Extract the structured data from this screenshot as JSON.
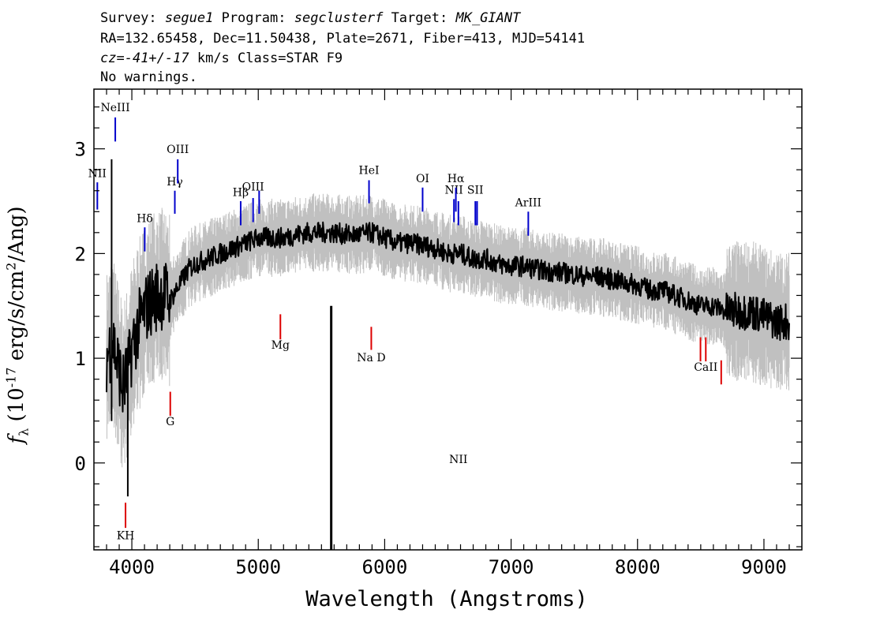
{
  "header": {
    "survey_label": "Survey:",
    "survey": "segue1",
    "program_label": "Program:",
    "program": "segclusterf",
    "target_label": "Target:",
    "target": "MK_GIANT",
    "line2": "RA=132.65458, Dec=11.50438, Plate=2671, Fiber=413, MJD=54141",
    "cz_label": "cz=",
    "cz_value": "-41+/-17",
    "cz_unit": " km/s Class=STAR F9",
    "line4": "No warnings."
  },
  "chart_data": {
    "type": "line",
    "xlabel": "Wavelength (Angstroms)",
    "ylabel_main": "f",
    "ylabel_sub": "λ",
    "ylabel_rest": " (10",
    "ylabel_exp": "-17",
    "ylabel_tail": " erg/s/cm",
    "ylabel_exp2": "2",
    "ylabel_end": "/Ang)",
    "xlim": [
      3700,
      9300
    ],
    "ylim": [
      -0.83,
      3.57
    ],
    "x_ticks": [
      4000,
      5000,
      6000,
      7000,
      8000,
      9000
    ],
    "x_tick_labels": [
      "4000",
      "5000",
      "6000",
      "7000",
      "8000",
      "9000"
    ],
    "y_ticks": [
      0,
      1,
      2,
      3
    ],
    "y_tick_labels": [
      "0",
      "1",
      "2",
      "3"
    ],
    "series": [
      {
        "color": "#000000",
        "x": [
          3800,
          3825,
          3850,
          3875,
          3900,
          3925,
          3950,
          3975,
          4000,
          4050,
          4100,
          4150,
          4200,
          4250,
          4300,
          4350,
          4400,
          4450,
          4500,
          4600,
          4700,
          4800,
          4900,
          5000,
          5100,
          5200,
          5300,
          5400,
          5500,
          5600,
          5700,
          5800,
          5900,
          6000,
          6100,
          6200,
          6300,
          6400,
          6500,
          6600,
          6700,
          6800,
          6900,
          7000,
          7100,
          7200,
          7300,
          7400,
          7500,
          7600,
          7700,
          7800,
          7900,
          8000,
          8100,
          8200,
          8300,
          8400,
          8500,
          8600,
          8700,
          8800,
          8900,
          9000,
          9100,
          9200
        ],
        "y": [
          1.0,
          1.1,
          1.2,
          1.0,
          0.9,
          0.7,
          0.8,
          0.9,
          1.1,
          1.3,
          1.45,
          1.55,
          1.6,
          1.62,
          1.55,
          1.65,
          1.75,
          1.85,
          1.9,
          1.95,
          2.0,
          2.05,
          2.1,
          2.15,
          2.15,
          2.15,
          2.18,
          2.2,
          2.2,
          2.2,
          2.18,
          2.18,
          2.2,
          2.15,
          2.1,
          2.1,
          2.08,
          2.05,
          2.0,
          2.0,
          1.95,
          1.95,
          1.9,
          1.88,
          1.88,
          1.85,
          1.83,
          1.82,
          1.8,
          1.78,
          1.78,
          1.75,
          1.72,
          1.7,
          1.65,
          1.65,
          1.6,
          1.55,
          1.5,
          1.5,
          1.45,
          1.45,
          1.45,
          1.4,
          1.35,
          1.35
        ]
      },
      {
        "color": "#c0c0c0",
        "x": [
          3800,
          3850,
          3900,
          3950,
          4000,
          4100,
          4200,
          4300,
          4400,
          4500,
          4700,
          4900,
          5100,
          5300,
          5500,
          5700,
          5900,
          6100,
          6300,
          6500,
          6700,
          6900,
          7100,
          7300,
          7500,
          7700,
          7900,
          8100,
          8300,
          8500,
          8700,
          8900,
          9100,
          9200
        ],
        "y": [
          0.6,
          0.7,
          0.5,
          0.3,
          0.9,
          1.2,
          1.4,
          1.35,
          1.5,
          1.65,
          1.8,
          1.9,
          1.95,
          1.97,
          2.0,
          2.0,
          1.98,
          1.95,
          1.9,
          1.82,
          1.78,
          1.75,
          1.72,
          1.68,
          1.65,
          1.62,
          1.6,
          1.55,
          1.45,
          1.35,
          1.3,
          1.2,
          1.15,
          1.1
        ]
      }
    ],
    "emission_lines": [
      {
        "label": "NII",
        "x": 3727,
        "y_top": 2.68,
        "y_bottom": 2.42,
        "label_y": 2.73
      },
      {
        "label": "NeIII",
        "x": 3869,
        "y_top": 3.3,
        "y_bottom": 3.07,
        "label_y": 3.36
      },
      {
        "label": "Hδ",
        "x": 4102,
        "y_top": 2.25,
        "y_bottom": 2.02,
        "label_y": 2.3
      },
      {
        "label": "Hγ",
        "x": 4340,
        "y_top": 2.6,
        "y_bottom": 2.38,
        "label_y": 2.65
      },
      {
        "label": "OIII",
        "x": 4363,
        "y_top": 2.9,
        "y_bottom": 2.67,
        "label_y": 2.96
      },
      {
        "label": "Hβ",
        "x": 4861,
        "y_top": 2.5,
        "y_bottom": 2.27,
        "label_y": 2.55
      },
      {
        "label": "OIII",
        "x": 4959,
        "y_top": 2.53,
        "y_bottom": 2.3,
        "label_y": 2.6
      },
      {
        "label": "",
        "x": 5007,
        "y_top": 2.6,
        "y_bottom": 2.38,
        "label_y": 0
      },
      {
        "label": "HeI",
        "x": 5876,
        "y_top": 2.7,
        "y_bottom": 2.48,
        "label_y": 2.76
      },
      {
        "label": "OI",
        "x": 6300,
        "y_top": 2.63,
        "y_bottom": 2.4,
        "label_y": 2.68
      },
      {
        "label": "NII",
        "x": 6548,
        "y_top": 2.52,
        "y_bottom": 2.3,
        "label_y": 2.57
      },
      {
        "label": "Hα",
        "x": 6563,
        "y_top": 2.63,
        "y_bottom": 2.4,
        "label_y": 2.68
      },
      {
        "label": "NII",
        "x": 6583,
        "y_top": 2.5,
        "y_bottom": 2.27,
        "label_y": 0
      },
      {
        "label": "SII",
        "x": 6717,
        "y_top": 2.5,
        "y_bottom": 2.27,
        "label_y": 2.57
      },
      {
        "label": "",
        "x": 6731,
        "y_top": 2.5,
        "y_bottom": 2.27,
        "label_y": 0
      },
      {
        "label": "ArIII",
        "x": 7136,
        "y_top": 2.4,
        "y_bottom": 2.17,
        "label_y": 2.45
      }
    ],
    "absorption_lines": [
      {
        "label": "KH",
        "x": 3950,
        "y_top": -0.38,
        "y_bottom": -0.62,
        "label_y": -0.73
      },
      {
        "label": "G",
        "x": 4304,
        "y_top": 0.68,
        "y_bottom": 0.45,
        "label_y": 0.36
      },
      {
        "label": "Mg",
        "x": 5175,
        "y_top": 1.42,
        "y_bottom": 1.18,
        "label_y": 1.09
      },
      {
        "label": "Na D",
        "x": 5894,
        "y_top": 1.3,
        "y_bottom": 1.08,
        "label_y": 0.97
      },
      {
        "label": "CaII",
        "x": 8540,
        "y_top": 1.2,
        "y_bottom": 0.97,
        "label_y": 0.88
      },
      {
        "label": "",
        "x": 8498,
        "y_top": 1.2,
        "y_bottom": 0.97,
        "label_y": 0
      },
      {
        "label": "",
        "x": 8662,
        "y_top": 0.98,
        "y_bottom": 0.75,
        "label_y": 0
      }
    ],
    "colors": {
      "emission": "#0000cc",
      "absorption": "#dd0000",
      "flux": "#000000",
      "error": "#c0c0c0"
    },
    "grid": false
  }
}
